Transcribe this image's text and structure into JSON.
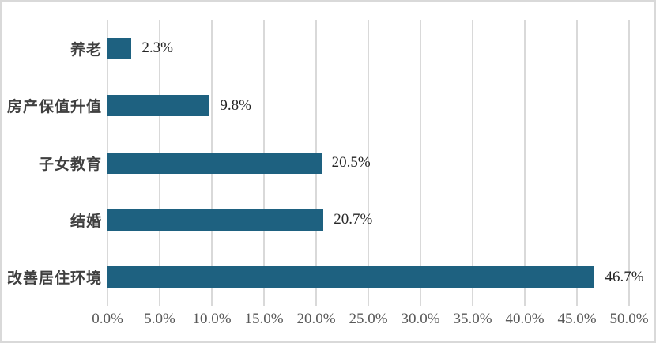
{
  "chart_data": {
    "type": "bar",
    "orientation": "horizontal",
    "title": "",
    "xlabel": "",
    "ylabel": "",
    "categories": [
      "养老",
      "房产保值升值",
      "子女教育",
      "结婚",
      "改善居住环境"
    ],
    "values": [
      2.3,
      9.8,
      20.5,
      20.7,
      46.7
    ],
    "data_labels": [
      "2.3%",
      "9.8%",
      "20.5%",
      "20.7%",
      "46.7%"
    ],
    "x_ticks": [
      "0.0%",
      "5.0%",
      "10.0%",
      "15.0%",
      "20.0%",
      "25.0%",
      "30.0%",
      "35.0%",
      "40.0%",
      "45.0%",
      "50.0%"
    ],
    "xlim": [
      0,
      50
    ],
    "grid": "vertical",
    "legend": "none",
    "colors": {
      "bar": "#1E6180",
      "gridline": "#D9D9D9",
      "category_label": "#404040",
      "value_label": "#262626",
      "tick_label": "#595959",
      "border": "#D9D9D9",
      "background": "#FFFFFF"
    }
  }
}
